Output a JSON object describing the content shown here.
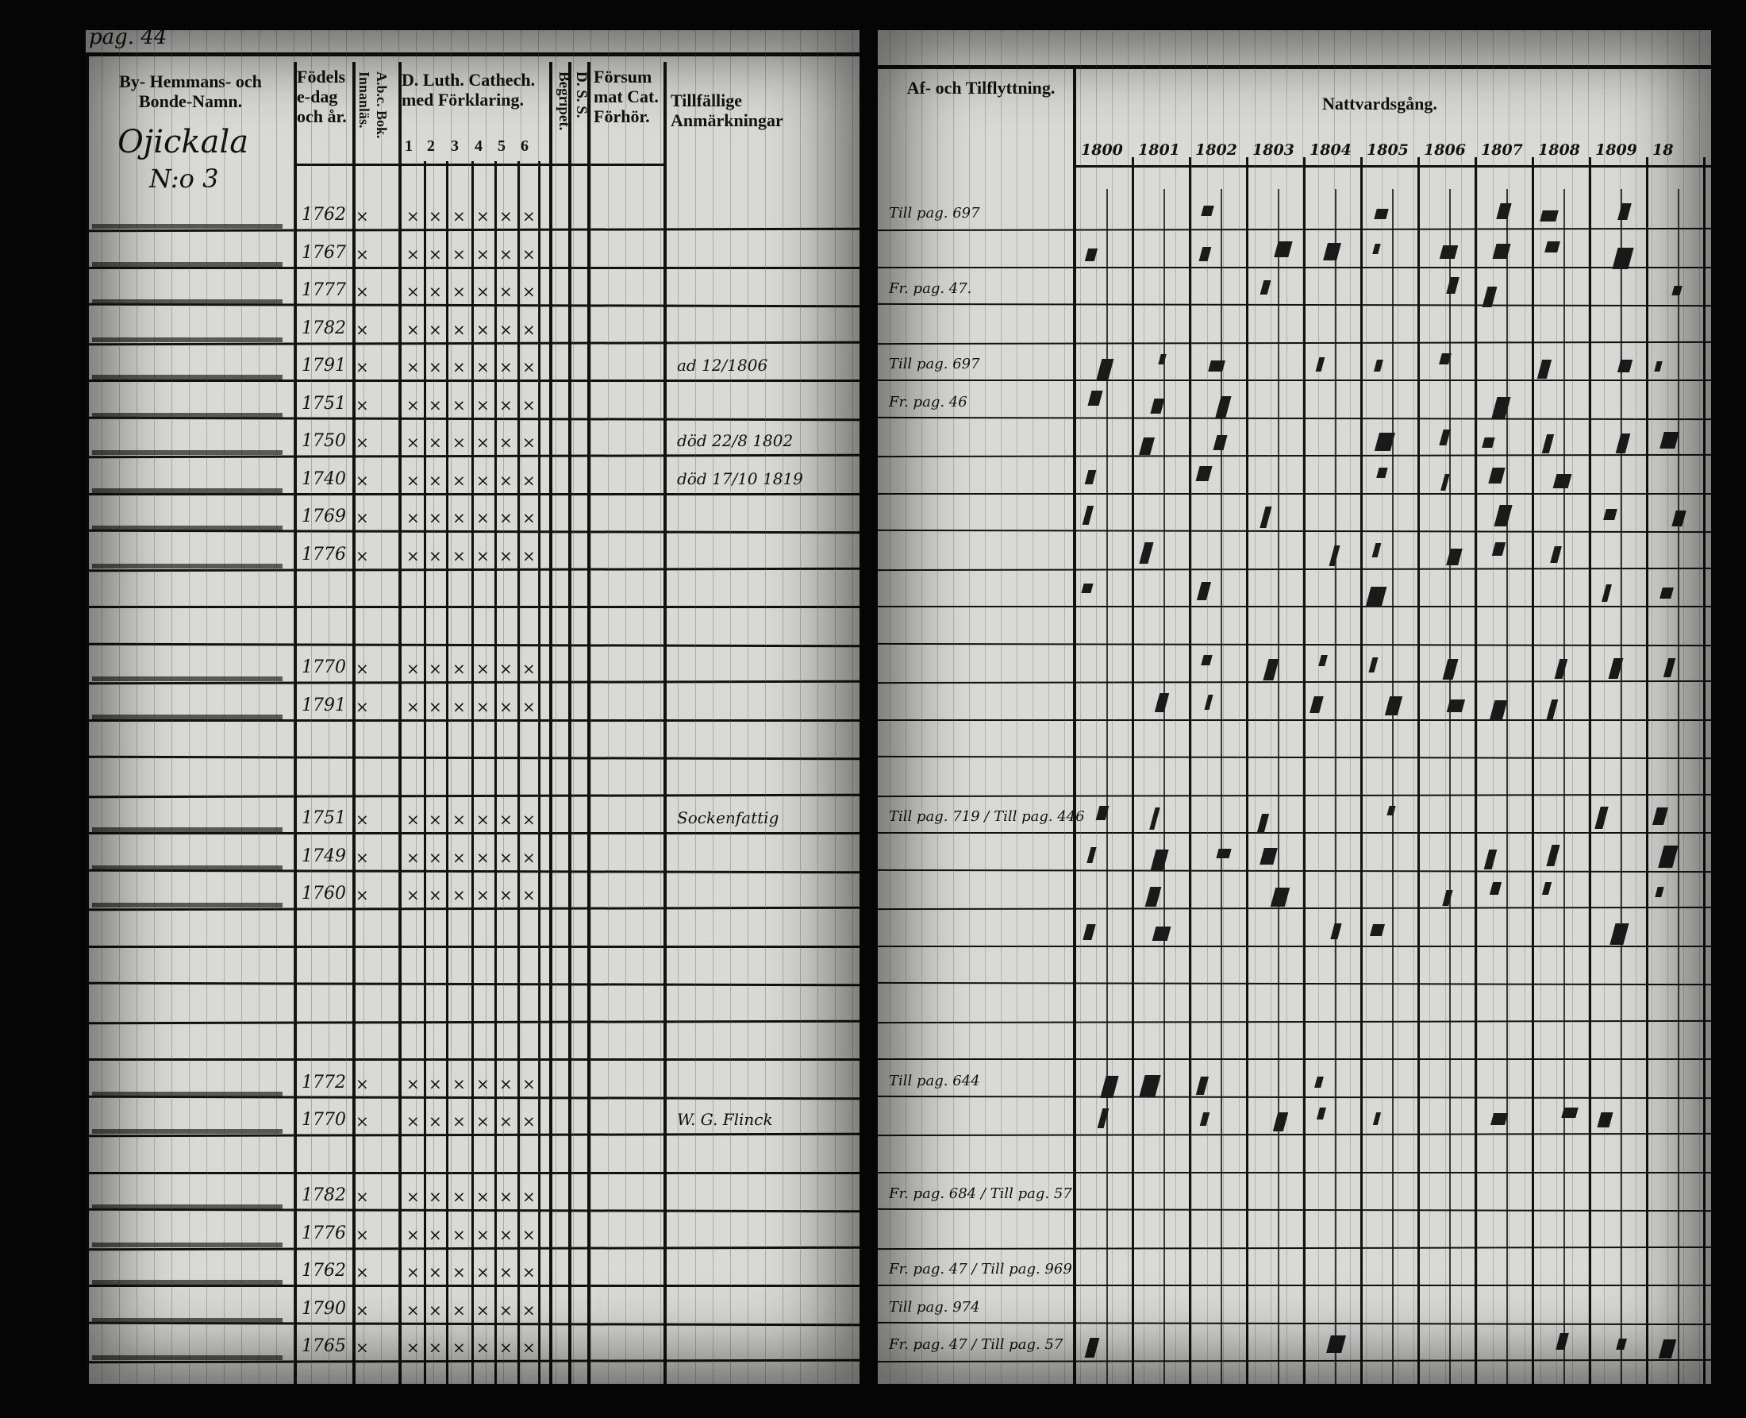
{
  "left_page": {
    "page_number": "pag. 44",
    "village": "Ojickala",
    "house_number": "N:o 3",
    "headers": {
      "name": "By- Hemmans- och Bonde-Namn.",
      "birth": "Födelse-dag och år.",
      "abc": "A.b.c. Bok. Innanläs.",
      "catechism": "D. Luth. Cathech. med Förklaring.",
      "catechism_parts": [
        "1",
        "2",
        "3",
        "4",
        "5",
        "6"
      ],
      "begripet": "Begripet.",
      "dss": "D. S. S.",
      "missed": "Försummat Cat. Förhör.",
      "remarks": "Tillfällige Anmärkningar"
    },
    "rows": [
      {
        "birth": "1762",
        "remark": ""
      },
      {
        "birth": "1767",
        "remark": ""
      },
      {
        "birth": "1777",
        "remark": ""
      },
      {
        "birth": "1782",
        "remark": ""
      },
      {
        "birth": "1791",
        "remark": "ad 12/1806"
      },
      {
        "birth": "1751",
        "remark": ""
      },
      {
        "birth": "1750",
        "remark": "död 22/8 1802"
      },
      {
        "birth": "1740",
        "remark": "död 17/10 1819"
      },
      {
        "birth": "1769",
        "remark": ""
      },
      {
        "birth": "1776",
        "remark": ""
      },
      {
        "birth": "",
        "remark": ""
      },
      {
        "birth": "",
        "remark": ""
      },
      {
        "birth": "1770",
        "remark": ""
      },
      {
        "birth": "1791",
        "remark": ""
      },
      {
        "birth": "",
        "remark": ""
      },
      {
        "birth": "",
        "remark": ""
      },
      {
        "birth": "1751",
        "remark": "Sockenfattig"
      },
      {
        "birth": "1749",
        "remark": ""
      },
      {
        "birth": "1760",
        "remark": ""
      },
      {
        "birth": "",
        "remark": ""
      },
      {
        "birth": "",
        "remark": ""
      },
      {
        "birth": "",
        "remark": ""
      },
      {
        "birth": "",
        "remark": ""
      },
      {
        "birth": "1772",
        "remark": ""
      },
      {
        "birth": "1770",
        "remark": "W. G. Flinck"
      },
      {
        "birth": "",
        "remark": ""
      },
      {
        "birth": "1782",
        "remark": ""
      },
      {
        "birth": "1776",
        "remark": ""
      },
      {
        "birth": "1762",
        "remark": ""
      },
      {
        "birth": "1790",
        "remark": ""
      },
      {
        "birth": "1765",
        "remark": ""
      }
    ]
  },
  "right_page": {
    "headers": {
      "moves": "Af- och Tilflyttning.",
      "communion": "Nattvardsgång."
    },
    "years": [
      "1800",
      "1801",
      "1802",
      "1803",
      "1804",
      "1805",
      "1806",
      "1807",
      "1808",
      "1809",
      "18"
    ],
    "moves": [
      "Till pag. 697",
      "",
      "Fr. pag. 47.",
      "",
      "Till pag. 697",
      "Fr. pag. 46",
      "",
      "",
      "",
      "",
      "",
      "",
      "",
      "",
      "",
      "",
      "Till pag. 719 / Till pag. 446",
      "",
      "",
      "",
      "",
      "",
      "",
      "Till pag. 644",
      "",
      "",
      "Fr. pag. 684 / Till pag. 57",
      "",
      "Fr. pag. 47 / Till pag. 969",
      "Till pag. 974",
      "Fr. pag. 47 / Till pag. 57"
    ]
  }
}
